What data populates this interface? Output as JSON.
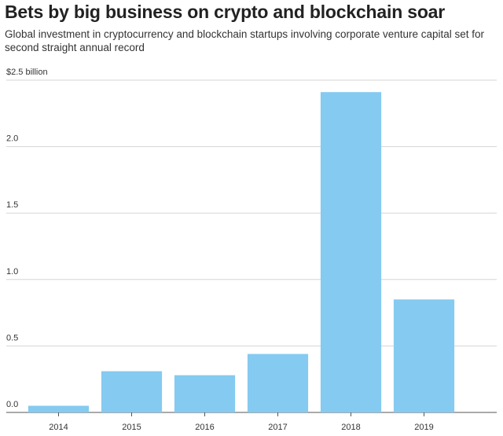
{
  "chart_data": {
    "type": "bar",
    "title": "Bets by big business on crypto and blockchain soar",
    "subtitle": "Global investment in cryptocurrency and blockchain startups involving corporate venture capital set for second straight annual record",
    "categories": [
      "2014",
      "2015",
      "2016",
      "2017",
      "2018",
      "2019"
    ],
    "values": [
      0.05,
      0.31,
      0.28,
      0.44,
      2.41,
      0.85
    ],
    "color": "#85caf0",
    "ylim": [
      0,
      2.5
    ],
    "yticks": [
      {
        "value": 0,
        "label": "0.0"
      },
      {
        "value": 0.5,
        "label": "0.5"
      },
      {
        "value": 1,
        "label": "1.0"
      },
      {
        "value": 1.5,
        "label": "1.5"
      },
      {
        "value": 2,
        "label": "2.0"
      },
      {
        "value": 2.5,
        "label": "$2.5  billion"
      }
    ],
    "grid": true
  }
}
